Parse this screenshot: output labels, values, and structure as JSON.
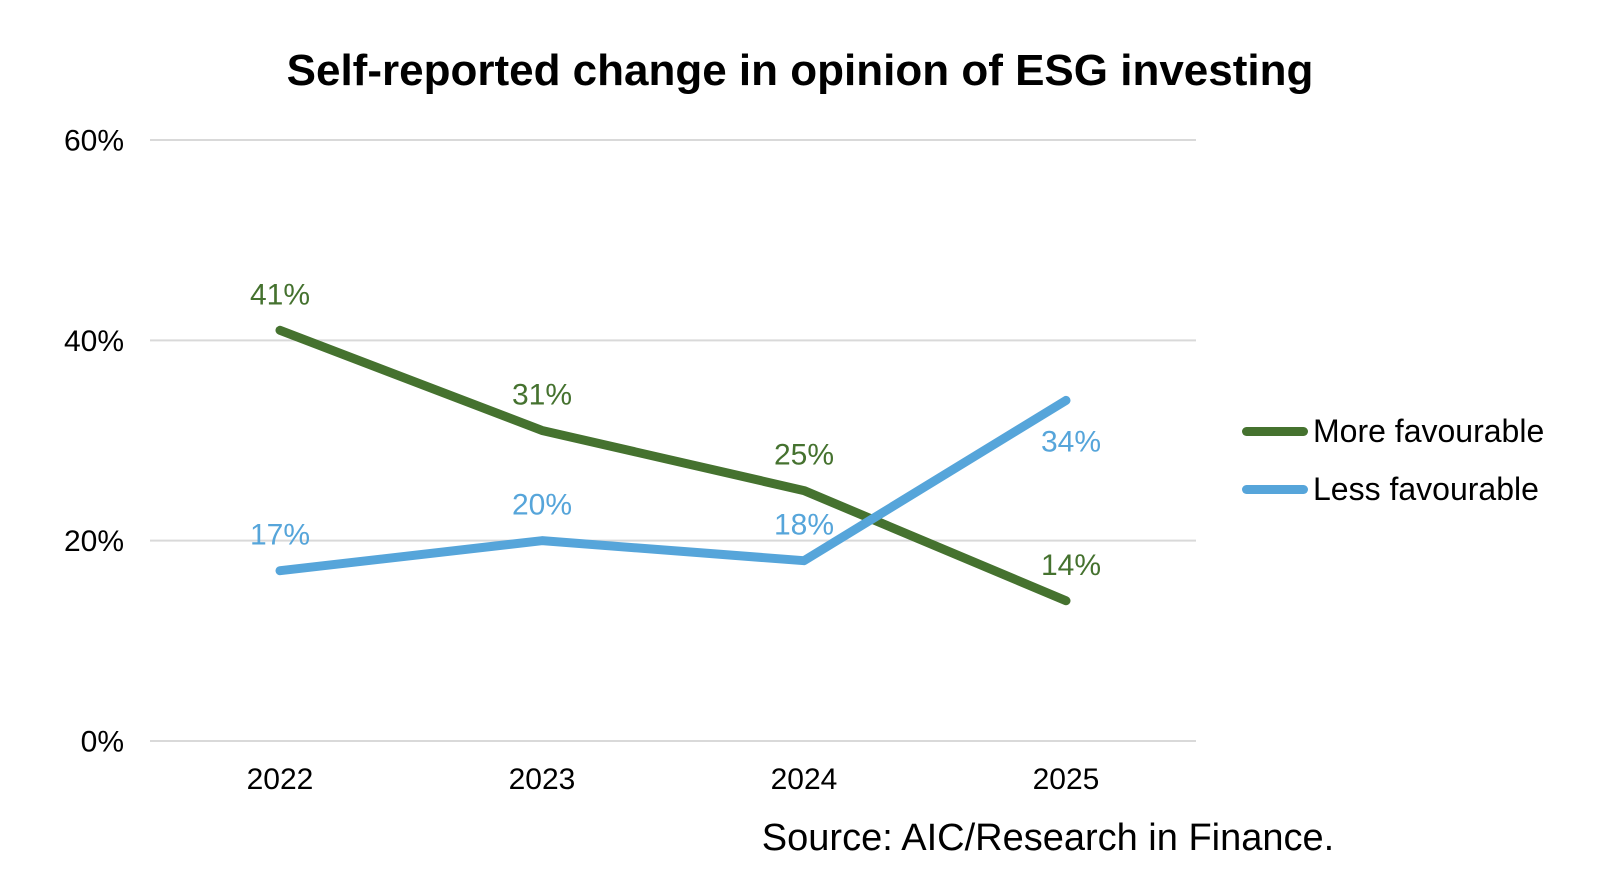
{
  "title": "Self-reported change in opinion of ESG investing",
  "source": "Source: AIC/Research in Finance.",
  "colors": {
    "more_favourable": "#45722F",
    "less_favourable": "#56A5DA",
    "gridline": "#D9D9D9",
    "text": "#000000"
  },
  "chart_data": {
    "type": "line",
    "title": "Self-reported change in opinion of ESG investing",
    "categories": [
      "2022",
      "2023",
      "2024",
      "2025"
    ],
    "series": [
      {
        "name": "More favourable",
        "color": "#45722F",
        "values": [
          41,
          31,
          25,
          14
        ],
        "labels": [
          "41%",
          "31%",
          "25%",
          "14%"
        ],
        "label_side": [
          "above",
          "above",
          "above",
          "above"
        ]
      },
      {
        "name": "Less favourable",
        "color": "#56A5DA",
        "values": [
          17,
          20,
          18,
          34
        ],
        "labels": [
          "17%",
          "20%",
          "18%",
          "34%"
        ],
        "label_side": [
          "above",
          "above",
          "above",
          "below"
        ]
      }
    ],
    "xlabel": "",
    "ylabel": "",
    "ylim": [
      0,
      60
    ],
    "yticks": [
      0,
      20,
      40,
      60
    ],
    "ytick_labels": [
      "0%",
      "20%",
      "40%",
      "60%"
    ],
    "grid": true,
    "legend_position": "right",
    "annotation": "Source: AIC/Research in Finance."
  }
}
